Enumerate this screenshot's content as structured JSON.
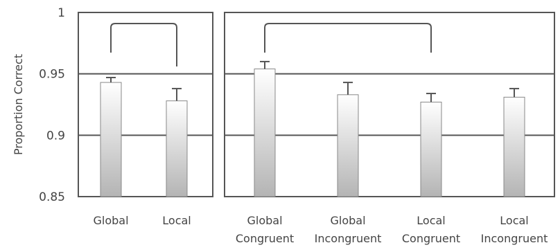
{
  "chart_data": [
    {
      "type": "bar",
      "ylabel": "Proportion Correct",
      "ylim": [
        0.85,
        1
      ],
      "yticks": [
        "0.85",
        "0.9",
        "0.95",
        "1"
      ],
      "grid": true,
      "categories": [
        [
          "Global"
        ],
        [
          "Local"
        ]
      ],
      "values": [
        0.943,
        0.928
      ],
      "error_upper": [
        0.947,
        0.938
      ],
      "significance_bracket": {
        "from": 0,
        "to": 1
      }
    },
    {
      "type": "bar",
      "ylim": [
        0.85,
        1
      ],
      "grid": true,
      "categories": [
        [
          "Global",
          "Congruent"
        ],
        [
          "Global",
          "Incongruent"
        ],
        [
          "Local",
          "Congruent"
        ],
        [
          "Local",
          "Incongruent"
        ]
      ],
      "values": [
        0.954,
        0.933,
        0.927,
        0.931
      ],
      "error_upper": [
        0.96,
        0.943,
        0.934,
        0.938
      ],
      "significance_bracket": {
        "from": 0,
        "to": 2
      }
    }
  ],
  "colors": {
    "bar_top": "#ffffff",
    "bar_bottom": "#b4b4b4",
    "frame": "#555555",
    "text": "#444444"
  }
}
